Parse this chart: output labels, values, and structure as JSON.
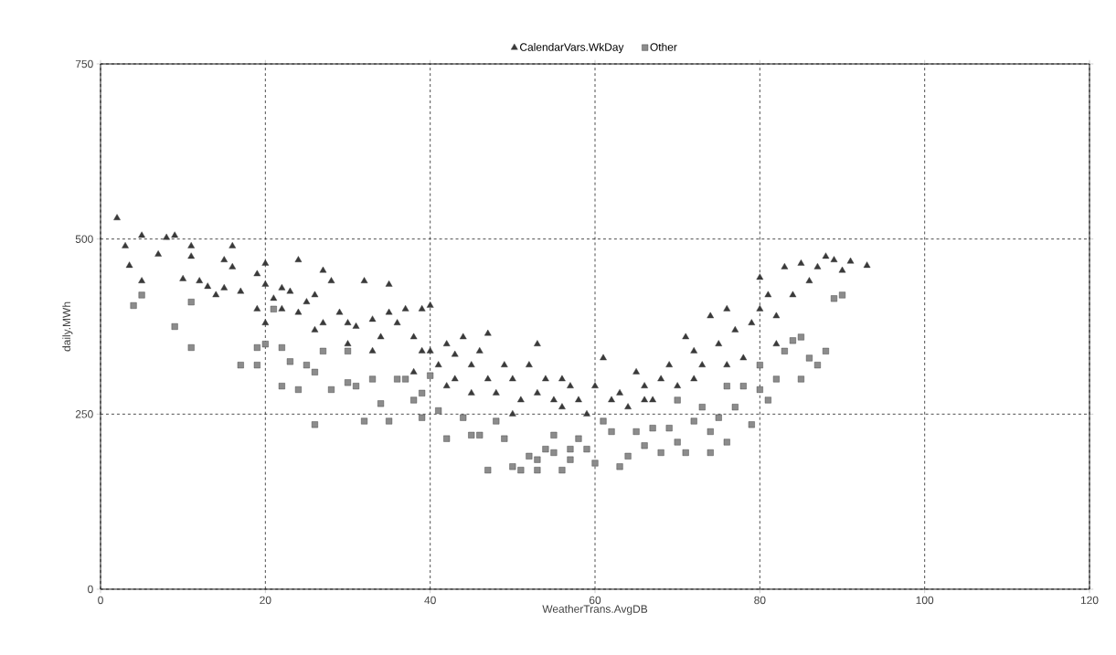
{
  "chart_data": {
    "type": "scatter",
    "xlabel": "WeatherTrans.AvgDB",
    "ylabel": "daily.MWh",
    "xlim": [
      0,
      120
    ],
    "xticks": [
      0,
      20,
      40,
      60,
      80,
      100,
      120
    ],
    "ylim": [
      0,
      750
    ],
    "yticks": [
      0,
      250,
      500,
      750
    ],
    "grid": true,
    "legend": "top",
    "series": [
      {
        "name": "CalendarVars.WkDay",
        "color": "#3a3a3a",
        "marker": "triangle",
        "x": [
          2,
          3,
          3.5,
          5,
          5,
          7,
          8,
          9,
          10,
          11,
          11,
          12,
          13,
          14,
          15,
          15,
          16,
          16,
          17,
          19,
          19,
          20,
          20,
          20,
          21,
          22,
          22,
          23,
          24,
          24,
          25,
          26,
          27,
          27,
          28,
          29,
          30,
          31,
          32,
          33,
          34,
          35,
          35,
          36,
          37,
          38,
          39,
          39,
          40,
          40,
          41,
          42,
          43,
          43,
          44,
          45,
          46,
          47,
          47,
          48,
          49,
          50,
          51,
          52,
          53,
          53,
          54,
          55,
          56,
          57,
          58,
          59,
          60,
          61,
          62,
          63,
          64,
          65,
          66,
          67,
          68,
          69,
          70,
          71,
          72,
          73,
          74,
          75,
          76,
          77,
          78,
          79,
          80,
          80,
          81,
          82,
          83,
          84,
          85,
          86,
          87,
          88,
          89,
          90,
          91,
          93,
          82,
          76,
          72,
          66,
          56,
          50,
          45,
          42,
          38,
          33,
          30,
          26
        ],
        "values": [
          530,
          490,
          462,
          505,
          440,
          478,
          502,
          505,
          443,
          490,
          475,
          440,
          432,
          420,
          430,
          470,
          490,
          460,
          425,
          400,
          450,
          465,
          380,
          435,
          415,
          430,
          400,
          425,
          470,
          395,
          410,
          420,
          455,
          380,
          440,
          395,
          380,
          375,
          440,
          385,
          360,
          435,
          395,
          380,
          400,
          360,
          340,
          400,
          405,
          340,
          320,
          350,
          335,
          300,
          360,
          320,
          340,
          365,
          300,
          280,
          320,
          300,
          270,
          320,
          350,
          280,
          300,
          270,
          260,
          290,
          270,
          250,
          290,
          330,
          270,
          280,
          260,
          310,
          290,
          270,
          300,
          320,
          290,
          360,
          340,
          320,
          390,
          350,
          400,
          370,
          330,
          380,
          400,
          445,
          420,
          390,
          460,
          420,
          465,
          440,
          460,
          475,
          470,
          455,
          468,
          462,
          350,
          320,
          300,
          270,
          300,
          250,
          280,
          290,
          310,
          340,
          350,
          370
        ]
      },
      {
        "name": "Other",
        "color": "#8c8c8c",
        "marker": "square",
        "x": [
          4,
          5,
          9,
          11,
          11,
          17,
          19,
          19,
          20,
          21,
          22,
          22,
          23,
          24,
          25,
          26,
          26,
          27,
          28,
          30,
          30,
          31,
          32,
          33,
          34,
          35,
          36,
          37,
          38,
          39,
          39,
          40,
          41,
          42,
          44,
          45,
          46,
          47,
          48,
          49,
          50,
          51,
          52,
          53,
          53,
          54,
          55,
          56,
          57,
          58,
          59,
          60,
          61,
          62,
          63,
          64,
          65,
          66,
          67,
          68,
          69,
          70,
          71,
          72,
          73,
          74,
          74,
          75,
          76,
          77,
          78,
          79,
          80,
          80,
          81,
          82,
          83,
          84,
          85,
          85,
          86,
          87,
          88,
          89,
          90,
          76,
          70,
          55,
          57
        ],
        "values": [
          405,
          420,
          375,
          345,
          410,
          320,
          345,
          320,
          350,
          400,
          290,
          345,
          325,
          285,
          320,
          310,
          235,
          340,
          285,
          295,
          340,
          290,
          240,
          300,
          265,
          240,
          300,
          300,
          270,
          280,
          245,
          305,
          255,
          215,
          245,
          220,
          220,
          170,
          240,
          215,
          175,
          170,
          190,
          185,
          170,
          200,
          220,
          170,
          185,
          215,
          200,
          180,
          240,
          225,
          175,
          190,
          225,
          205,
          230,
          195,
          230,
          210,
          195,
          240,
          260,
          225,
          195,
          245,
          290,
          260,
          290,
          235,
          285,
          320,
          270,
          300,
          340,
          355,
          360,
          300,
          330,
          320,
          340,
          415,
          420,
          210,
          270,
          195,
          200
        ]
      }
    ]
  }
}
